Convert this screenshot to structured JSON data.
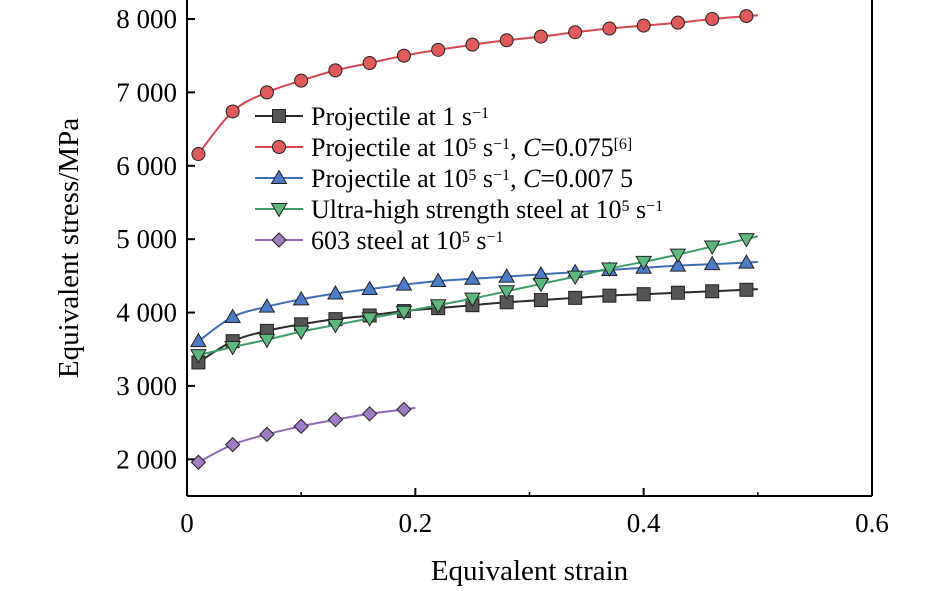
{
  "chart_data": {
    "type": "line",
    "xlabel": "Equivalent strain",
    "ylabel": "Equivalent stress/MPa",
    "xlim": [
      0,
      0.6
    ],
    "ylim": [
      1500,
      8000
    ],
    "x_ticks": [
      {
        "value": 0,
        "label": "0"
      },
      {
        "value": 0.2,
        "label": "0.2"
      },
      {
        "value": 0.4,
        "label": "0.4"
      },
      {
        "value": 0.6,
        "label": "0.6"
      }
    ],
    "y_ticks": [
      {
        "value": 2000,
        "label": "2 000"
      },
      {
        "value": 3000,
        "label": "3 000"
      },
      {
        "value": 4000,
        "label": "4 000"
      },
      {
        "value": 5000,
        "label": "5 000"
      },
      {
        "value": 6000,
        "label": "6 000"
      },
      {
        "value": 7000,
        "label": "7 000"
      },
      {
        "value": 8000,
        "label": "8 000"
      }
    ],
    "grid": false,
    "legend_position": "top-right",
    "series": [
      {
        "legend_parts": [
          {
            "text": "Projectile at 1 s"
          },
          {
            "text": "−1",
            "style": "sup"
          }
        ],
        "color": "#2a2a2a",
        "marker": "square",
        "marker_fill": "#555555",
        "x": [
          0.01,
          0.04,
          0.07,
          0.1,
          0.13,
          0.16,
          0.19,
          0.22,
          0.25,
          0.28,
          0.31,
          0.34,
          0.37,
          0.4,
          0.43,
          0.46,
          0.49
        ],
        "y": [
          3320,
          3610,
          3750,
          3840,
          3910,
          3960,
          4020,
          4060,
          4100,
          4140,
          4170,
          4200,
          4230,
          4250,
          4270,
          4290,
          4310
        ],
        "line_end_x": 0.5,
        "line_end_y": 4320
      },
      {
        "legend_parts": [
          {
            "text": "Projectile at 10"
          },
          {
            "text": "5",
            "style": "sup"
          },
          {
            "text": " s"
          },
          {
            "text": "−1",
            "style": "sup"
          },
          {
            "text": ", "
          },
          {
            "text": "C",
            "style": "italic"
          },
          {
            "text": "=0.075"
          },
          {
            "text": "[6]",
            "style": "sup"
          }
        ],
        "color": "#d64550",
        "marker": "circle",
        "marker_fill": "#e05a5a",
        "x": [
          0.01,
          0.04,
          0.07,
          0.1,
          0.13,
          0.16,
          0.19,
          0.22,
          0.25,
          0.28,
          0.31,
          0.34,
          0.37,
          0.4,
          0.43,
          0.46,
          0.49
        ],
        "y": [
          6160,
          6740,
          7000,
          7160,
          7300,
          7400,
          7500,
          7580,
          7650,
          7710,
          7760,
          7820,
          7870,
          7910,
          7950,
          8000,
          8040
        ],
        "line_end_x": 0.5,
        "line_end_y": 8050
      },
      {
        "legend_parts": [
          {
            "text": "Projectile at 10"
          },
          {
            "text": "5",
            "style": "sup"
          },
          {
            "text": " s"
          },
          {
            "text": "−1",
            "style": "sup"
          },
          {
            "text": ", "
          },
          {
            "text": "C",
            "style": "italic"
          },
          {
            "text": "=0.007 5"
          }
        ],
        "color": "#3d6db5",
        "marker": "triangle-up",
        "marker_fill": "#4a7cc7",
        "x": [
          0.01,
          0.04,
          0.07,
          0.1,
          0.13,
          0.16,
          0.19,
          0.22,
          0.25,
          0.28,
          0.31,
          0.34,
          0.37,
          0.4,
          0.43,
          0.46,
          0.49
        ],
        "y": [
          3610,
          3940,
          4080,
          4180,
          4260,
          4320,
          4380,
          4430,
          4460,
          4490,
          4520,
          4550,
          4580,
          4610,
          4640,
          4660,
          4680
        ],
        "line_end_x": 0.5,
        "line_end_y": 4690
      },
      {
        "legend_parts": [
          {
            "text": "Ultra-high strength steel at 10"
          },
          {
            "text": "5",
            "style": "sup"
          },
          {
            "text": " s"
          },
          {
            "text": "−1",
            "style": "sup"
          }
        ],
        "color": "#3a9e6a",
        "marker": "triangle-down",
        "marker_fill": "#5cb87c",
        "x": [
          0.01,
          0.04,
          0.07,
          0.1,
          0.13,
          0.16,
          0.19,
          0.22,
          0.25,
          0.28,
          0.31,
          0.34,
          0.37,
          0.4,
          0.43,
          0.46,
          0.49
        ],
        "y": [
          3420,
          3530,
          3630,
          3740,
          3830,
          3920,
          4010,
          4100,
          4190,
          4290,
          4390,
          4490,
          4600,
          4690,
          4790,
          4900,
          5000
        ],
        "line_end_x": 0.5,
        "line_end_y": 5040
      },
      {
        "legend_parts": [
          {
            "text": "603 steel at 10"
          },
          {
            "text": "5",
            "style": "sup"
          },
          {
            "text": " s"
          },
          {
            "text": "−1",
            "style": "sup"
          }
        ],
        "color": "#8c6bb1",
        "marker": "diamond",
        "marker_fill": "#a07cc5",
        "x": [
          0.01,
          0.04,
          0.07,
          0.1,
          0.13,
          0.16,
          0.19
        ],
        "y": [
          1960,
          2200,
          2340,
          2450,
          2540,
          2620,
          2680
        ],
        "line_end_x": 0.2,
        "line_end_y": 2700
      }
    ]
  }
}
